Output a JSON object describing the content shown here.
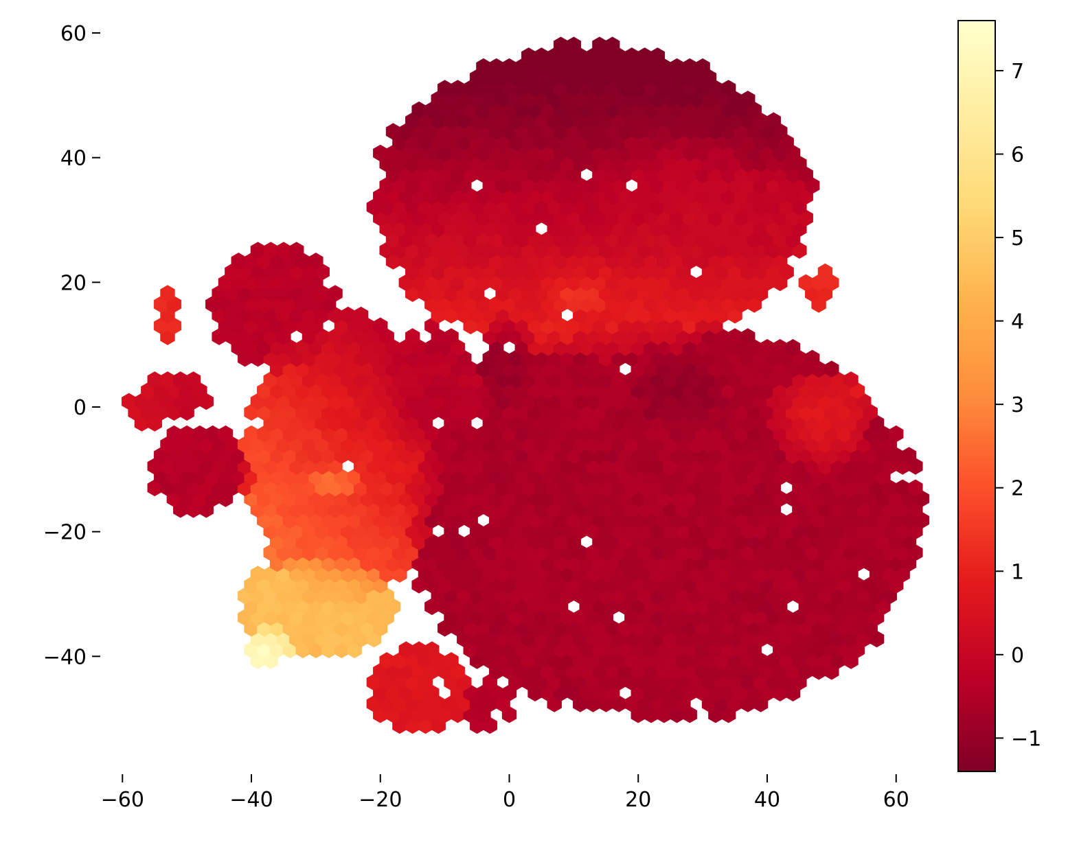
{
  "chart_data": {
    "type": "heatmap",
    "subtype": "hexbin-embedding",
    "title": "",
    "xlabel": "",
    "ylabel": "",
    "xlim": [
      -65,
      67
    ],
    "ylim": [
      -58,
      63
    ],
    "x_ticks": [
      -60,
      -40,
      -20,
      0,
      20,
      40,
      60
    ],
    "y_ticks": [
      -40,
      -20,
      0,
      20,
      40,
      60
    ],
    "x_tick_labels": [
      "−60",
      "−40",
      "−20",
      "0",
      "20",
      "40",
      "60"
    ],
    "y_tick_labels": [
      "−40",
      "−20",
      "0",
      "20",
      "40",
      "60"
    ],
    "colorbar": {
      "colormap": "YlOrRd_r",
      "range": [
        -1.4,
        7.6
      ],
      "ticks": [
        -1,
        0,
        1,
        2,
        3,
        4,
        5,
        6,
        7
      ],
      "tick_labels": [
        "−1",
        "0",
        "1",
        "2",
        "3",
        "4",
        "5",
        "6",
        "7"
      ],
      "stops": [
        "#800026",
        "#bd0026",
        "#e31a1c",
        "#fc4e2a",
        "#fd8d3c",
        "#feb24c",
        "#fed976",
        "#ffeda0",
        "#ffffcc"
      ]
    },
    "grid": false,
    "hex_bin_size": 2.0,
    "clusters": [
      {
        "x": 13,
        "y": 33,
        "rx": 34,
        "ry": 25,
        "value": -0.3,
        "grad": [
          0.0,
          -0.06
        ]
      },
      {
        "x": 25,
        "y": 33,
        "rx": 14,
        "ry": 11,
        "value": 0.1
      },
      {
        "x": 15,
        "y": 19,
        "rx": 12,
        "ry": 5,
        "value": 0.8
      },
      {
        "x": 11,
        "y": 18,
        "rx": 5,
        "ry": 3,
        "value": 2.2
      },
      {
        "x": 38,
        "y": 31,
        "rx": 9,
        "ry": 8,
        "value": 0.0
      },
      {
        "x": 24,
        "y": -18,
        "rx": 40,
        "ry": 32,
        "value": -0.6
      },
      {
        "x": 26,
        "y": 2,
        "rx": 8,
        "ry": 6,
        "value": -1.2
      },
      {
        "x": 48,
        "y": -2,
        "rx": 8,
        "ry": 8,
        "value": 1.0
      },
      {
        "x": 48,
        "y": 19,
        "rx": 3,
        "ry": 3,
        "value": 1.2
      },
      {
        "x": 0,
        "y": 7,
        "rx": 4,
        "ry": 8,
        "value": -0.9
      },
      {
        "x": -12,
        "y": 3,
        "rx": 8,
        "ry": 10,
        "value": -0.3
      },
      {
        "x": -26,
        "y": -8,
        "rx": 15,
        "ry": 24,
        "value": 1.2,
        "grad": [
          -0.05,
          -0.05
        ]
      },
      {
        "x": -36,
        "y": 16,
        "rx": 10,
        "ry": 10,
        "value": -0.3
      },
      {
        "x": -30,
        "y": -32,
        "rx": 12,
        "ry": 8,
        "value": 4.5
      },
      {
        "x": -37,
        "y": -38,
        "rx": 4,
        "ry": 3,
        "value": 7.2
      },
      {
        "x": -27,
        "y": -12,
        "rx": 5,
        "ry": 3,
        "value": 3.6
      },
      {
        "x": -48,
        "y": -10,
        "rx": 8,
        "ry": 7,
        "value": -0.4
      },
      {
        "x": -55,
        "y": 1,
        "rx": 4,
        "ry": 4,
        "value": 0.3
      },
      {
        "x": -50,
        "y": 2,
        "rx": 4,
        "ry": 3,
        "value": 0.0
      },
      {
        "x": -14,
        "y": -45,
        "rx": 8,
        "ry": 7,
        "value": 0.7
      },
      {
        "x": -3,
        "y": -48,
        "rx": 4,
        "ry": 4,
        "value": -0.4
      },
      {
        "x": -53,
        "y": 15,
        "rx": 1.6,
        "ry": 4,
        "value": 1.1
      }
    ]
  }
}
